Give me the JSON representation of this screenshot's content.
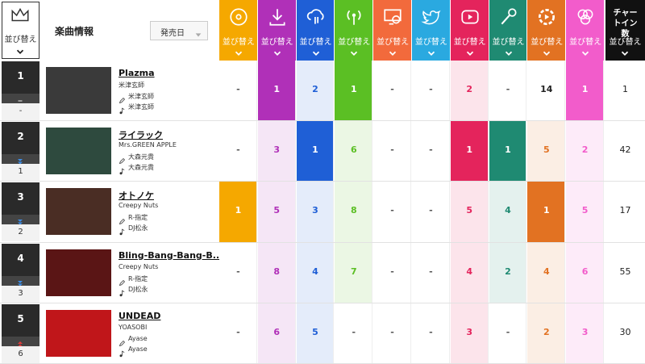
{
  "header": {
    "rank": {
      "sort_label": "並び替え"
    },
    "song_info": "楽曲情報",
    "dropdown": "発売日",
    "metrics": [
      {
        "sort_label": "並び替え",
        "color": "#f5a800"
      },
      {
        "sort_label": "並び替え",
        "color": "#b030b8"
      },
      {
        "sort_label": "並び替え",
        "color": "#1f5fd6"
      },
      {
        "sort_label": "並び替え",
        "color": "#5bbf24"
      },
      {
        "sort_label": "並び替え",
        "color": "#f26a3c"
      },
      {
        "sort_label": "並び替え",
        "color": "#2aa9e0"
      },
      {
        "sort_label": "並び替え",
        "color": "#e4245c"
      },
      {
        "sort_label": "並び替え",
        "color": "#1f8a72"
      },
      {
        "sort_label": "並び替え",
        "color": "#e27222"
      },
      {
        "sort_label": "並び替え",
        "color": "#f25ccb"
      }
    ],
    "chart_in": {
      "title": "チャートイン数",
      "sort_label": "並び替え"
    }
  },
  "rows": [
    {
      "rank": 1,
      "previous": "-",
      "title": "Plazma",
      "artist": "米津玄師",
      "lyricist": "米津玄師",
      "composer": "米津玄師",
      "metrics": [
        "-",
        1,
        2,
        1,
        "-",
        "-",
        2,
        "-",
        14,
        1
      ],
      "chart_in": 1
    },
    {
      "rank": 2,
      "previous": 1,
      "title": "ライラック",
      "artist": "Mrs.GREEN APPLE",
      "lyricist": "大森元貴",
      "composer": "大森元貴",
      "metrics": [
        "-",
        3,
        1,
        6,
        "-",
        "-",
        1,
        1,
        5,
        2
      ],
      "chart_in": 42
    },
    {
      "rank": 3,
      "previous": 2,
      "title": "オトノケ",
      "artist": "Creepy Nuts",
      "lyricist": "R-指定",
      "composer": "DJ松永",
      "metrics": [
        1,
        5,
        3,
        8,
        "-",
        "-",
        5,
        4,
        1,
        5
      ],
      "chart_in": 17
    },
    {
      "rank": 4,
      "previous": 3,
      "title": "Bling-Bang-Bang-B...",
      "artist": "Creepy Nuts",
      "lyricist": "R-指定",
      "composer": "DJ松永",
      "metrics": [
        "-",
        8,
        4,
        7,
        "-",
        "-",
        4,
        2,
        4,
        6
      ],
      "chart_in": 55
    },
    {
      "rank": 5,
      "previous": 6,
      "title": "UNDEAD",
      "artist": "YOASOBI",
      "lyricist": "Ayase",
      "composer": "Ayase",
      "metrics": [
        "-",
        6,
        5,
        "-",
        "-",
        "-",
        3,
        "-",
        2,
        3
      ],
      "chart_in": 30
    }
  ]
}
